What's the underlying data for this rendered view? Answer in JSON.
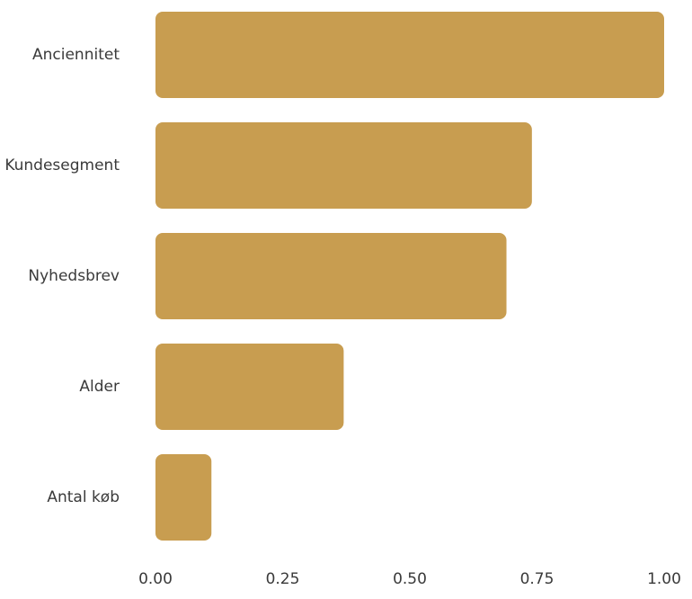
{
  "chart_data": {
    "type": "bar",
    "orientation": "horizontal",
    "categories": [
      "Anciennitet",
      "Kundesegment",
      "Nyhedsbrev",
      "Alder",
      "Antal køb"
    ],
    "values": [
      1.0,
      0.74,
      0.69,
      0.37,
      0.11
    ],
    "title": "",
    "xlabel": "",
    "ylabel": "",
    "xlim": [
      0,
      1
    ],
    "xticks": [
      "0.00",
      "0.25",
      "0.50",
      "0.75",
      "1.00"
    ],
    "grid": false,
    "legend": "none",
    "bar_color": "#C89D50"
  }
}
